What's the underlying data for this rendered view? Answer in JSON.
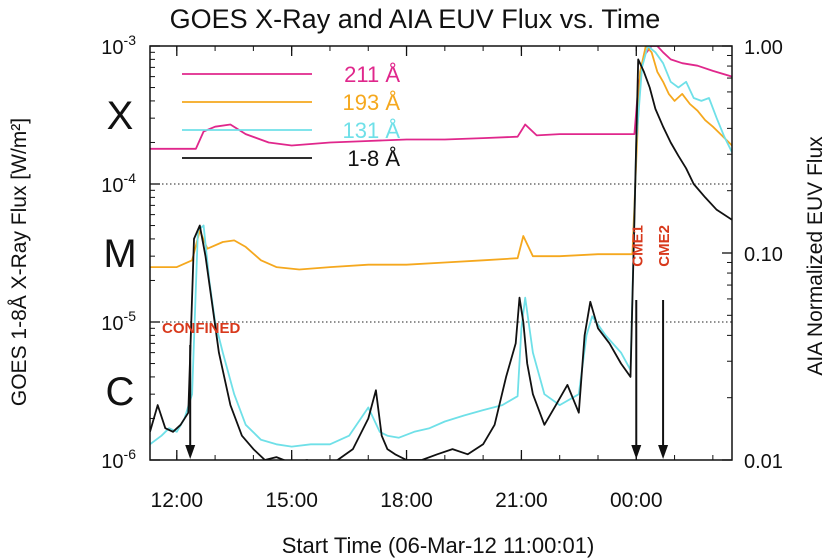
{
  "chart_data": {
    "type": "line",
    "title": "GOES X-Ray and AIA EUV Flux vs. Time",
    "xlabel": "Start Time (06-Mar-12 11:00:01)",
    "ylabel_left": "GOES 1-8Å X-Ray Flux [W/m²]",
    "ylabel_right": "AIA Normalized EUV Flux",
    "x_unit": "hours since start",
    "xlim": [
      0.3,
      15.5
    ],
    "ylim_left": [
      1e-06,
      0.001
    ],
    "ylim_right": [
      0.01,
      1.0
    ],
    "y_scale": "log",
    "x_ticks": [
      {
        "value": 1.0,
        "label": "12:00"
      },
      {
        "value": 4.0,
        "label": "15:00"
      },
      {
        "value": 7.0,
        "label": "18:00"
      },
      {
        "value": 10.0,
        "label": "21:00"
      },
      {
        "value": 13.0,
        "label": "00:00"
      }
    ],
    "left_ticks": [
      {
        "value": 0.001,
        "base": "10",
        "exp": "-3"
      },
      {
        "value": 0.0001,
        "base": "10",
        "exp": "-4"
      },
      {
        "value": 1e-05,
        "base": "10",
        "exp": "-5"
      },
      {
        "value": 1e-06,
        "base": "10",
        "exp": "-6"
      }
    ],
    "right_ticks": [
      {
        "value": 1.0,
        "label": "1.00"
      },
      {
        "value": 0.1,
        "label": "0.10"
      },
      {
        "value": 0.01,
        "label": "0.01"
      }
    ],
    "flare_classes": [
      {
        "label": "X",
        "center": 0.000316
      },
      {
        "label": "M",
        "center": 3.16e-05
      },
      {
        "label": "C",
        "center": 3.16e-06
      }
    ],
    "dotted_lines": [
      0.0001,
      1e-05
    ],
    "legend": {
      "position": "top-left"
    },
    "series": [
      {
        "name": "211 Å",
        "color": "#e0278c",
        "axis": "left",
        "x": [
          0.3,
          1.5,
          1.7,
          2.0,
          2.4,
          2.8,
          3.4,
          4.0,
          5.0,
          6.0,
          7.0,
          8.0,
          9.0,
          9.9,
          10.1,
          10.4,
          11.0,
          12.0,
          12.95,
          13.05,
          13.2,
          13.4,
          13.55,
          13.7,
          13.9,
          14.2,
          14.6,
          15.0,
          15.5
        ],
        "y": [
          0.00018,
          0.00018,
          0.00024,
          0.00026,
          0.00027,
          0.00023,
          0.0002,
          0.00019,
          0.0002,
          0.000205,
          0.00021,
          0.00021,
          0.000215,
          0.00022,
          0.00027,
          0.000225,
          0.00023,
          0.00023,
          0.00023,
          0.0005,
          0.00085,
          0.001,
          0.001,
          0.0009,
          0.0008,
          0.00075,
          0.00072,
          0.00066,
          0.0006
        ]
      },
      {
        "name": "193 Å",
        "color": "#f5a81e",
        "axis": "left",
        "x": [
          0.3,
          1.0,
          1.4,
          1.6,
          1.8,
          2.2,
          2.5,
          2.8,
          3.2,
          3.6,
          4.2,
          5.0,
          6.0,
          7.0,
          8.0,
          9.0,
          9.9,
          10.05,
          10.3,
          11.0,
          12.0,
          12.9,
          13.0,
          13.1,
          13.25,
          13.4,
          13.55,
          13.7,
          13.85,
          14.0,
          14.2,
          14.4,
          14.6,
          14.8,
          15.0,
          15.2,
          15.5
        ],
        "y": [
          2.5e-05,
          2.5e-05,
          2.8e-05,
          4.6e-05,
          3.4e-05,
          3.8e-05,
          3.9e-05,
          3.5e-05,
          2.8e-05,
          2.5e-05,
          2.4e-05,
          2.5e-05,
          2.6e-05,
          2.6e-05,
          2.7e-05,
          2.8e-05,
          2.9e-05,
          4.2e-05,
          3e-05,
          3e-05,
          3.1e-05,
          3.1e-05,
          0.00015,
          0.00065,
          0.001,
          0.0009,
          0.00065,
          0.00055,
          0.00045,
          0.0004,
          0.00045,
          0.00038,
          0.00034,
          0.00029,
          0.00026,
          0.00023,
          0.00019
        ]
      },
      {
        "name": "131 Å",
        "color": "#6fe0e8",
        "axis": "left",
        "x": [
          0.3,
          0.6,
          0.8,
          1.0,
          1.2,
          1.4,
          1.55,
          1.7,
          1.85,
          2.0,
          2.2,
          2.5,
          2.8,
          3.2,
          3.6,
          4.0,
          4.5,
          5.0,
          5.5,
          6.0,
          6.3,
          6.5,
          6.8,
          7.2,
          7.6,
          8.0,
          8.5,
          9.0,
          9.5,
          9.9,
          10.0,
          10.1,
          10.3,
          10.6,
          11.0,
          11.5,
          11.7,
          11.85,
          12.2,
          12.6,
          12.85,
          13.0,
          13.15,
          13.3,
          13.5,
          13.7,
          13.9,
          14.1,
          14.3,
          14.5,
          14.7,
          14.9,
          15.1,
          15.3,
          15.5
        ],
        "y": [
          1.3e-06,
          1.5e-06,
          1.7e-06,
          1.6e-06,
          2e-06,
          3e-06,
          4.6e-05,
          5e-05,
          2e-05,
          1e-05,
          6e-06,
          3e-06,
          1.8e-06,
          1.4e-06,
          1.3e-06,
          1.25e-06,
          1.3e-06,
          1.3e-06,
          1.5e-06,
          2.4e-06,
          1.6e-06,
          1.5e-06,
          1.45e-06,
          1.6e-06,
          1.7e-06,
          1.9e-06,
          2.1e-06,
          2.3e-06,
          2.5e-06,
          2.9e-06,
          9e-06,
          1.5e-05,
          6e-06,
          3e-06,
          2.5e-06,
          3e-06,
          8e-06,
          1.1e-05,
          8e-06,
          6e-06,
          4.5e-06,
          0.0002,
          0.0007,
          0.001,
          0.0009,
          0.00075,
          0.00055,
          0.0005,
          0.00055,
          0.00042,
          0.0004,
          0.00042,
          0.0003,
          0.00022,
          0.00017
        ]
      },
      {
        "name": "1-8 Å",
        "color": "#111111",
        "axis": "left",
        "x": [
          0.3,
          0.5,
          0.7,
          0.9,
          1.1,
          1.3,
          1.45,
          1.6,
          1.75,
          1.9,
          2.1,
          2.4,
          2.7,
          3.0,
          3.3,
          3.6,
          4.0,
          4.4,
          4.8,
          5.2,
          5.6,
          6.0,
          6.2,
          6.35,
          6.5,
          6.7,
          7.0,
          7.4,
          7.8,
          8.2,
          8.6,
          9.0,
          9.3,
          9.6,
          9.85,
          9.95,
          10.05,
          10.15,
          10.3,
          10.6,
          10.9,
          11.2,
          11.5,
          11.65,
          11.8,
          12.0,
          12.3,
          12.6,
          12.85,
          12.95,
          13.05,
          13.2,
          13.35,
          13.5,
          13.7,
          13.9,
          14.1,
          14.3,
          14.5,
          14.8,
          15.1,
          15.5
        ],
        "y": [
          1.6e-06,
          2.5e-06,
          1.7e-06,
          1.6e-06,
          1.8e-06,
          2.2e-06,
          4e-05,
          5e-05,
          3e-05,
          1.5e-05,
          6e-06,
          2.5e-06,
          1.5e-06,
          1.2e-06,
          1e-06,
          1.05e-06,
          9.5e-07,
          1e-06,
          9e-07,
          1e-06,
          1.2e-06,
          2e-06,
          3.2e-06,
          1.5e-06,
          1.2e-06,
          1.1e-06,
          1e-06,
          1e-06,
          1.1e-06,
          1.2e-06,
          1.1e-06,
          1.3e-06,
          1.8e-06,
          4e-06,
          7e-06,
          1.5e-05,
          1e-05,
          5e-06,
          3e-06,
          1.8e-06,
          2.5e-06,
          3.5e-06,
          2.2e-06,
          8e-06,
          1.4e-05,
          9e-06,
          7e-06,
          5e-06,
          4e-06,
          5.5e-05,
          0.0008,
          0.00065,
          0.0005,
          0.00035,
          0.00026,
          0.0002,
          0.00016,
          0.00013,
          0.0001,
          8e-05,
          6.5e-05,
          5.5e-05
        ]
      }
    ],
    "annotations": [
      {
        "text": "CONFINED",
        "x": 1.35,
        "color": "#d8391c"
      },
      {
        "text": "CME1",
        "x": 13.0,
        "color": "#d8391c"
      },
      {
        "text": "CME2",
        "x": 13.7,
        "color": "#d8391c"
      }
    ]
  }
}
